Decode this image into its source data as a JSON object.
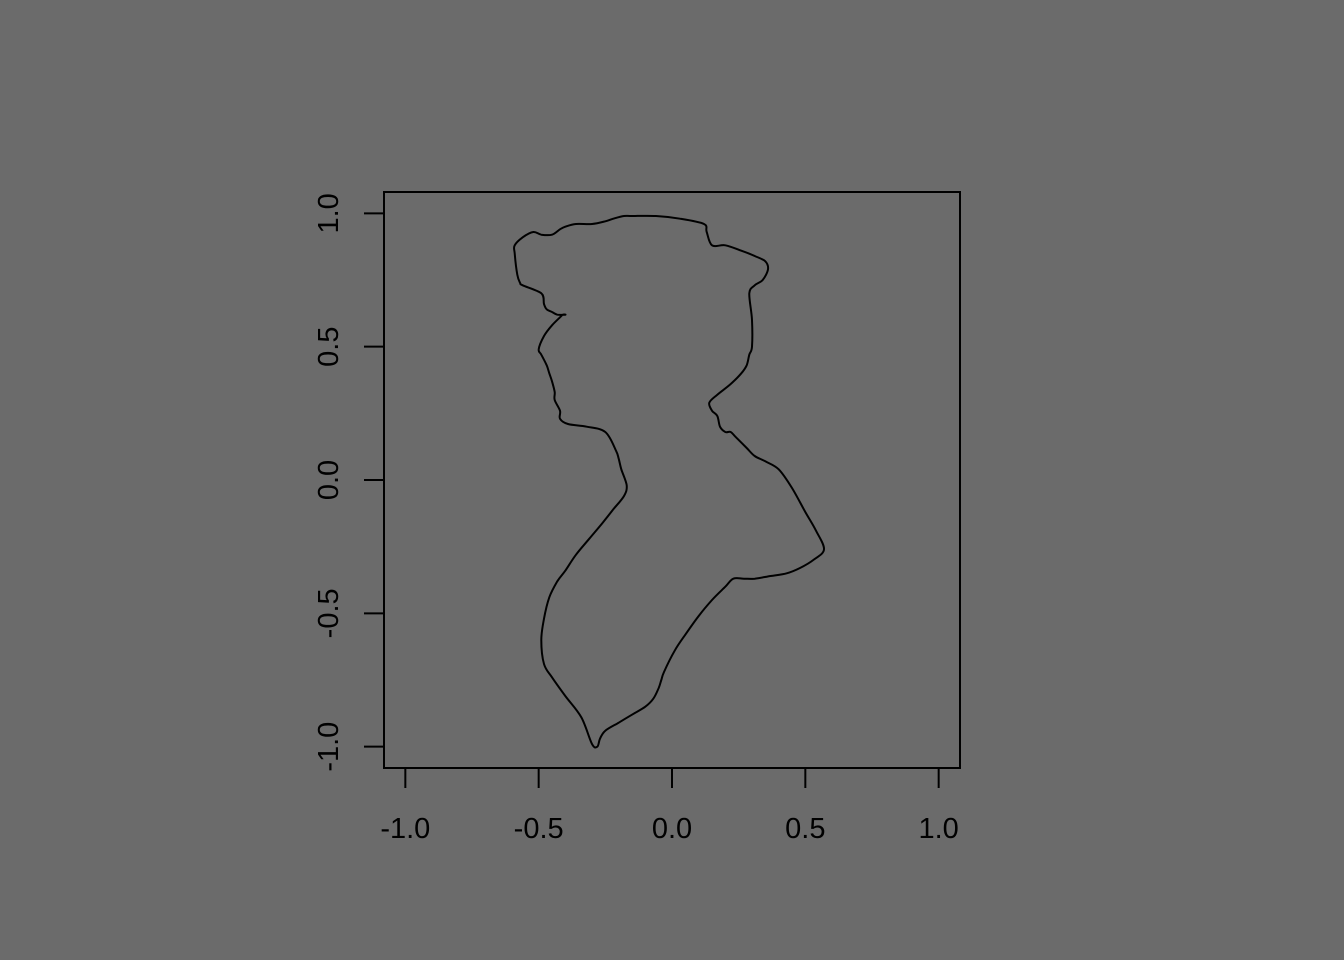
{
  "chart_data": {
    "type": "line",
    "title": "",
    "xlabel": "",
    "ylabel": "",
    "xlim": [
      -1.08,
      1.08
    ],
    "ylim": [
      -1.08,
      1.08
    ],
    "grid": false,
    "legend": "none",
    "line_color": "#000000",
    "background_color": "#6b6b6b",
    "x_ticks": [
      -1.0,
      -0.5,
      0.0,
      0.5,
      1.0
    ],
    "x_tick_labels": [
      "-1.0",
      "-0.5",
      "0.0",
      "0.5",
      "1.0"
    ],
    "y_ticks": [
      -1.0,
      -0.5,
      0.0,
      0.5,
      1.0
    ],
    "y_tick_labels": [
      "-1.0",
      "-0.5",
      "0.0",
      "0.5",
      "1.0"
    ],
    "series": [
      {
        "x": [
          -0.15,
          -0.06,
          0.03,
          0.12,
          0.13,
          0.15,
          0.2,
          0.26,
          0.31,
          0.35,
          0.36,
          0.34,
          0.31,
          0.29,
          0.3,
          0.3,
          0.29,
          0.28,
          0.26,
          0.22,
          0.17,
          0.14,
          0.15,
          0.17,
          0.18,
          0.2,
          0.22,
          0.24,
          0.28,
          0.31,
          0.35,
          0.4,
          0.45,
          0.5,
          0.54,
          0.57,
          0.53,
          0.48,
          0.43,
          0.37,
          0.31,
          0.27,
          0.23,
          0.2,
          0.15,
          0.1,
          0.05,
          0.01,
          -0.03,
          -0.04,
          -0.05,
          -0.07,
          -0.1,
          -0.15,
          -0.2,
          -0.25,
          -0.27,
          -0.28,
          -0.3,
          -0.34,
          -0.4,
          -0.45,
          -0.48,
          -0.49,
          -0.48,
          -0.46,
          -0.43,
          -0.4,
          -0.36,
          -0.31,
          -0.26,
          -0.22,
          -0.18,
          -0.17,
          -0.19,
          -0.2,
          -0.21,
          -0.25,
          -0.32,
          -0.39,
          -0.42,
          -0.42,
          -0.44,
          -0.44,
          -0.45,
          -0.46,
          -0.47,
          -0.49,
          -0.5,
          -0.48,
          -0.45,
          -0.42,
          -0.41,
          -0.4,
          -0.43,
          -0.45,
          -0.47,
          -0.48,
          -0.49,
          -0.56,
          -0.57,
          -0.58,
          -0.59,
          -0.59,
          -0.56,
          -0.52,
          -0.49,
          -0.45,
          -0.42,
          -0.4,
          -0.36,
          -0.3,
          -0.25,
          -0.22,
          -0.18
        ],
        "y": [
          0.99,
          0.99,
          0.98,
          0.96,
          0.93,
          0.88,
          0.88,
          0.86,
          0.84,
          0.82,
          0.79,
          0.75,
          0.73,
          0.7,
          0.6,
          0.5,
          0.47,
          0.43,
          0.4,
          0.36,
          0.32,
          0.29,
          0.26,
          0.24,
          0.2,
          0.18,
          0.18,
          0.16,
          0.12,
          0.09,
          0.07,
          0.04,
          -0.03,
          -0.12,
          -0.19,
          -0.26,
          -0.3,
          -0.33,
          -0.35,
          -0.36,
          -0.37,
          -0.37,
          -0.37,
          -0.4,
          -0.45,
          -0.51,
          -0.58,
          -0.64,
          -0.72,
          -0.75,
          -0.78,
          -0.82,
          -0.85,
          -0.88,
          -0.91,
          -0.94,
          -0.97,
          -1.0,
          -0.99,
          -0.89,
          -0.81,
          -0.74,
          -0.69,
          -0.6,
          -0.52,
          -0.44,
          -0.38,
          -0.34,
          -0.28,
          -0.22,
          -0.16,
          -0.11,
          -0.06,
          -0.02,
          0.04,
          0.08,
          0.11,
          0.18,
          0.2,
          0.21,
          0.23,
          0.26,
          0.3,
          0.33,
          0.37,
          0.4,
          0.43,
          0.47,
          0.49,
          0.54,
          0.58,
          0.61,
          0.62,
          0.62,
          0.62,
          0.63,
          0.64,
          0.66,
          0.7,
          0.73,
          0.74,
          0.77,
          0.85,
          0.88,
          0.91,
          0.93,
          0.92,
          0.92,
          0.94,
          0.95,
          0.96,
          0.96,
          0.97,
          0.98,
          0.99
        ]
      }
    ]
  }
}
